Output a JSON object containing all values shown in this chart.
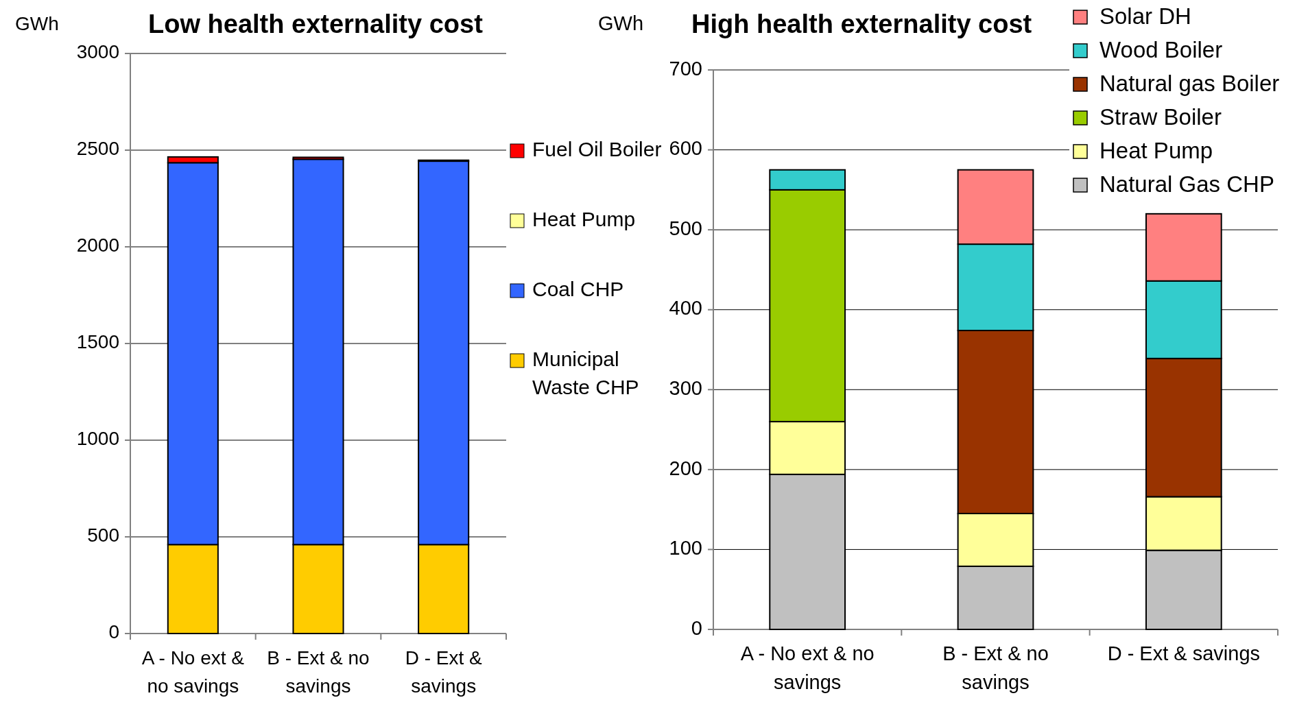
{
  "chart_data": [
    {
      "type": "bar",
      "title": "Low health externality cost",
      "ylabel": "GWh",
      "stacked": true,
      "categories": [
        "A - No ext & no savings",
        "B - Ext & no savings",
        "D - Ext & savings"
      ],
      "ylim": [
        0,
        3000
      ],
      "yticks": [
        0,
        500,
        1000,
        1500,
        2000,
        2500,
        3000
      ],
      "grid": "y",
      "legend": "right",
      "series": [
        {
          "name": "Municipal Waste CHP",
          "color": "#ffcc00",
          "values": [
            460,
            460,
            460
          ]
        },
        {
          "name": "Coal CHP",
          "color": "#3366ff",
          "values": [
            1975,
            1993,
            1983
          ]
        },
        {
          "name": "Heat Pump",
          "color": "#ffff99",
          "values": [
            0,
            0,
            0
          ]
        },
        {
          "name": "Fuel Oil Boiler",
          "color": "#ff0000",
          "values": [
            30,
            10,
            5
          ]
        }
      ]
    },
    {
      "type": "bar",
      "title": "High health externality cost",
      "ylabel": "GWh",
      "stacked": true,
      "categories": [
        "A - No ext & no savings",
        "B - Ext & no savings",
        "D - Ext & savings"
      ],
      "ylim": [
        0,
        700
      ],
      "yticks": [
        0,
        100,
        200,
        300,
        400,
        500,
        600,
        700
      ],
      "grid": "y",
      "legend": "top right",
      "series": [
        {
          "name": "Natural Gas CHP",
          "color": "#c0c0c0",
          "values": [
            194,
            79,
            99
          ]
        },
        {
          "name": "Heat Pump",
          "color": "#ffff99",
          "values": [
            66,
            66,
            67
          ]
        },
        {
          "name": "Straw Boiler",
          "color": "#99cc00",
          "values": [
            290,
            0,
            0
          ]
        },
        {
          "name": "Natural gas Boiler",
          "color": "#993300",
          "values": [
            0,
            229,
            173
          ]
        },
        {
          "name": "Wood Boiler",
          "color": "#33cccc",
          "values": [
            25,
            108,
            97
          ]
        },
        {
          "name": "Solar DH",
          "color": "#ff8080",
          "values": [
            0,
            93,
            84
          ]
        }
      ]
    }
  ]
}
